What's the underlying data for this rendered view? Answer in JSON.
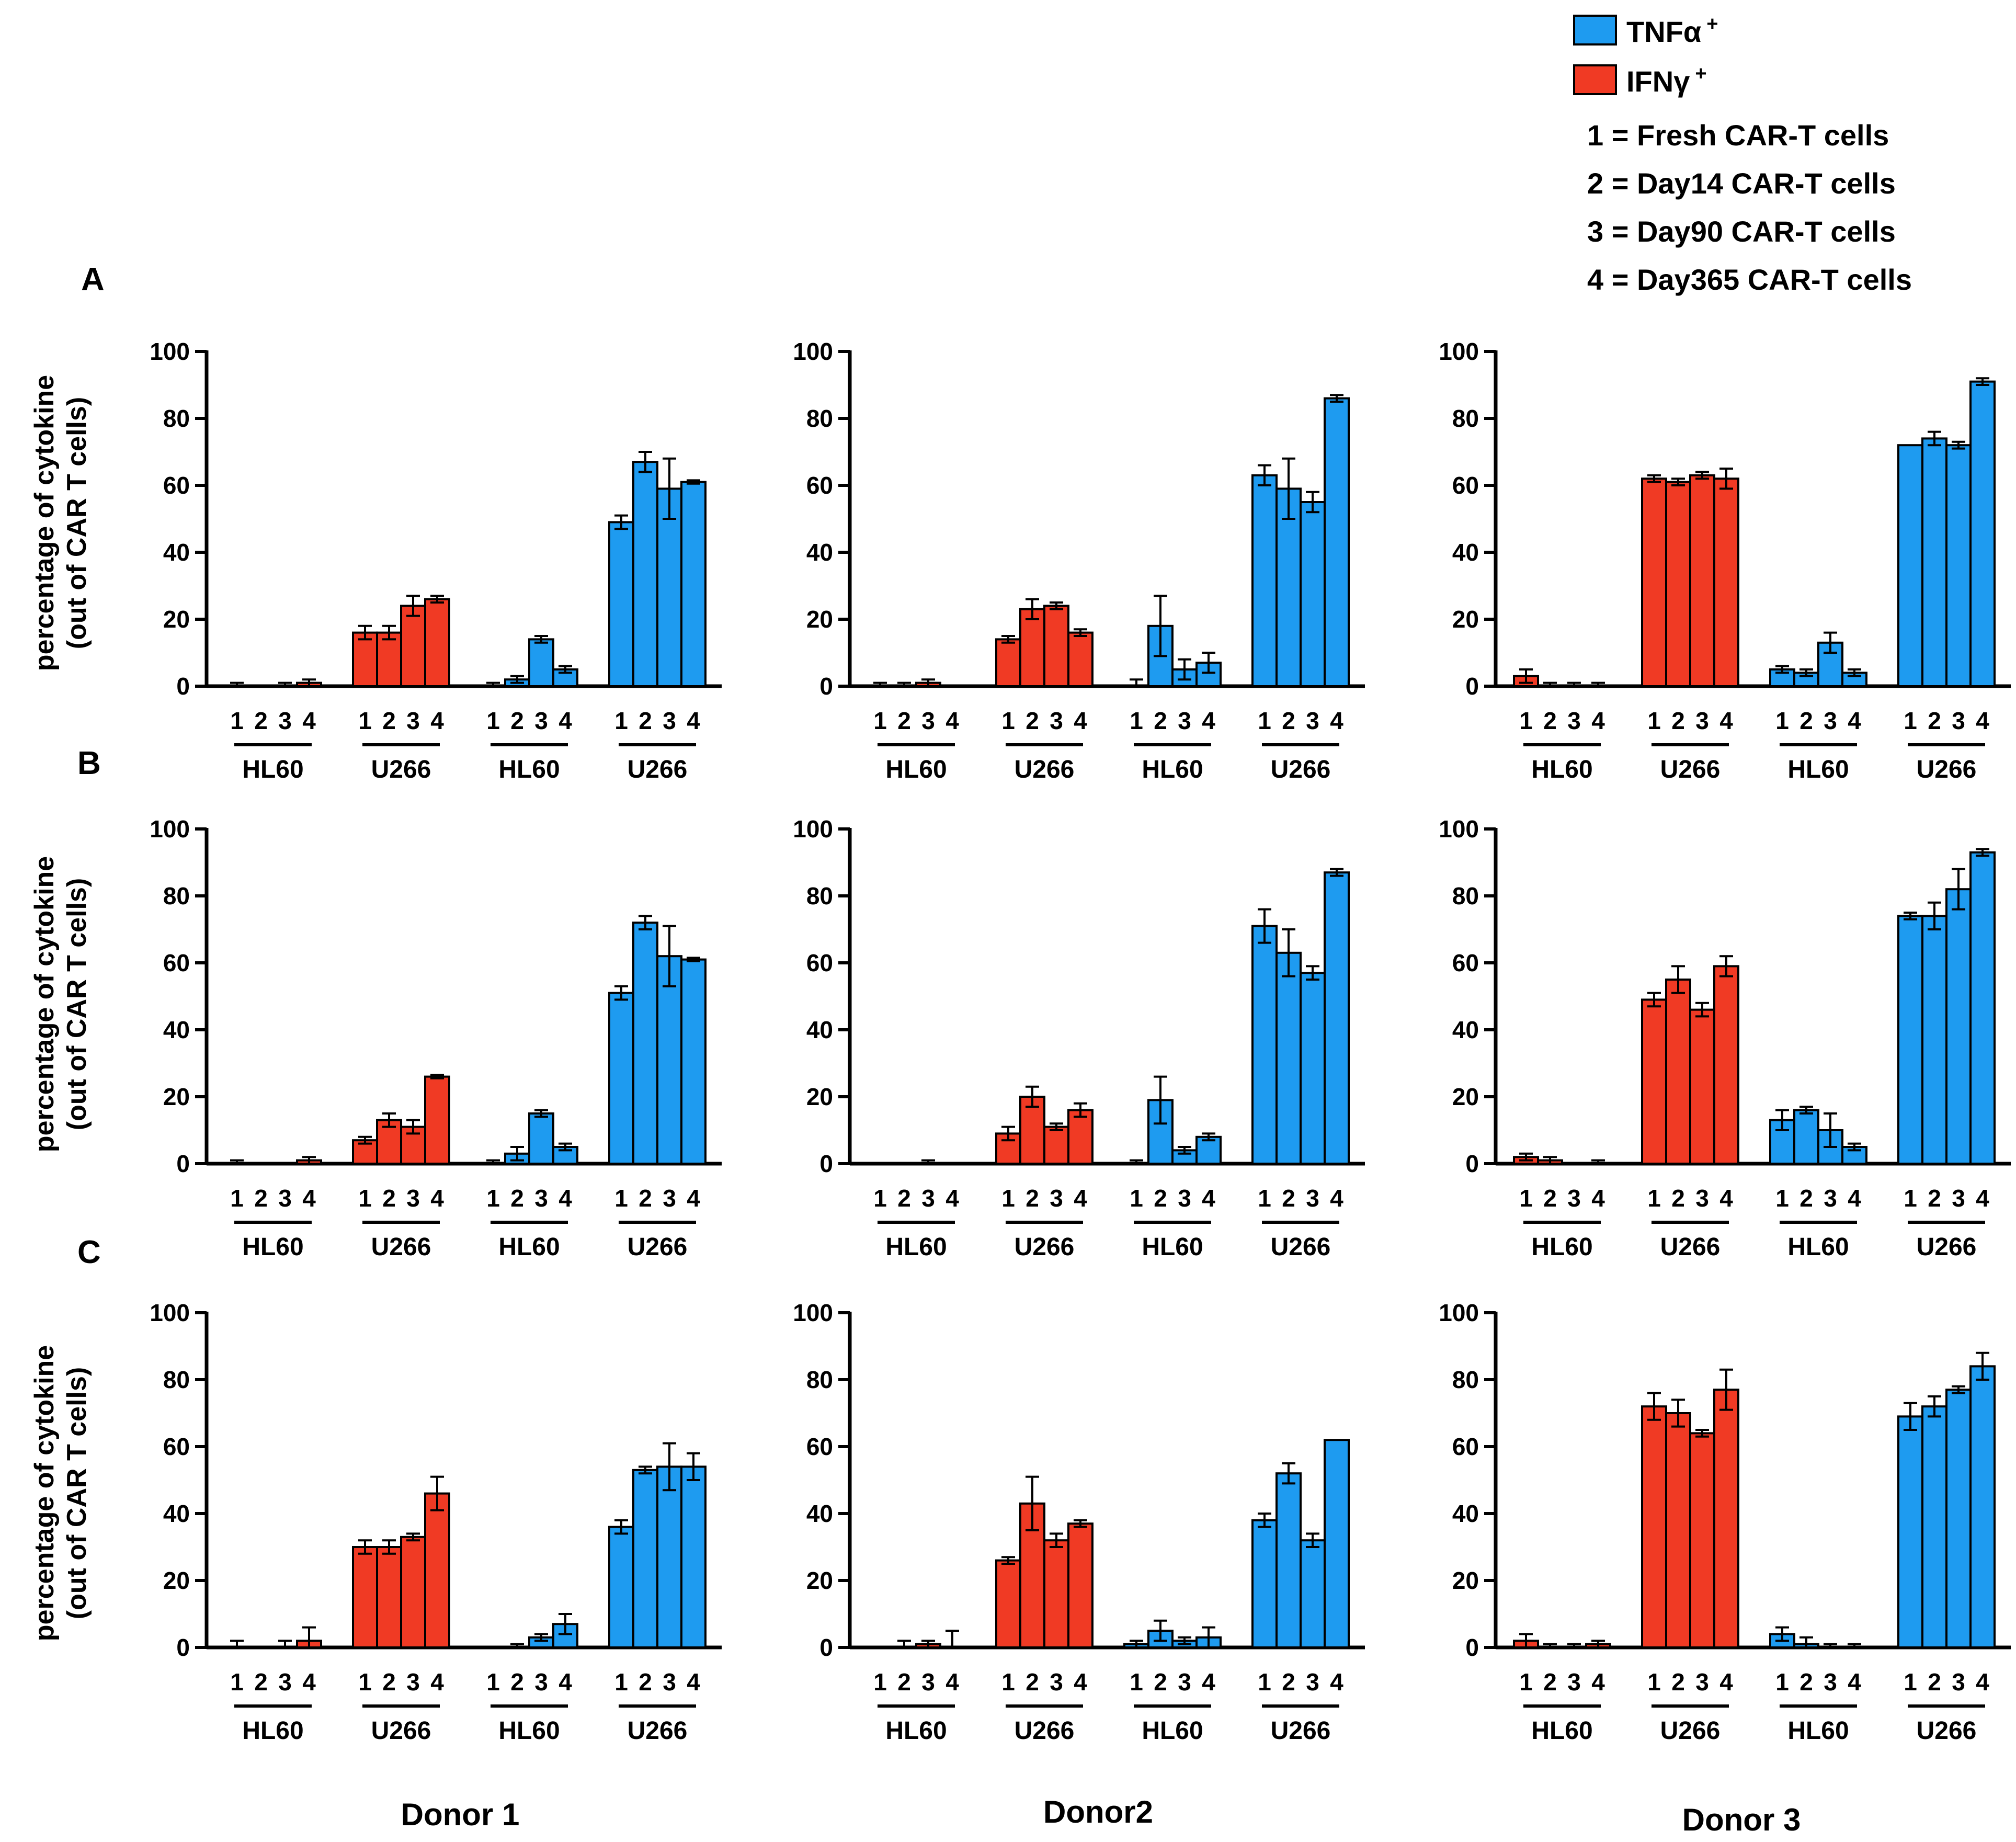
{
  "colors": {
    "tnf": "#1e9bf0",
    "ifn": "#f03a24"
  },
  "legend": {
    "tnf_label": "TNFα",
    "ifn_label": "IFNγ",
    "sup": "+",
    "notes": [
      "1 = Fresh  CAR-T cells",
      "2 = Day14 CAR-T cells",
      "3 = Day90 CAR-T cells",
      "4 = Day365  CAR-T cells"
    ]
  },
  "panel_letters": [
    "A",
    "B",
    "C"
  ],
  "ylabel": [
    "percentage of cytokine",
    "(out of CAR T cells)"
  ],
  "donors": [
    "Donor 1",
    "Donor2",
    "Donor 3"
  ],
  "chart_data": [
    {
      "type": "bar",
      "panel": "A",
      "donor": "Donor 1",
      "ylim": [
        0,
        100
      ],
      "yticks": [
        0,
        20,
        40,
        60,
        80,
        100
      ],
      "groups": [
        "HL60",
        "U266",
        "HL60",
        "U266"
      ],
      "group_series": [
        "IFNγ+",
        "IFNγ+",
        "TNFα+",
        "TNFα+"
      ],
      "categories": [
        "1",
        "2",
        "3",
        "4"
      ],
      "values": [
        [
          0,
          0,
          0,
          1
        ],
        [
          16,
          16,
          24,
          26
        ],
        [
          0,
          2,
          14,
          5
        ],
        [
          49,
          67,
          59,
          61
        ]
      ],
      "errors": [
        [
          1,
          0,
          1,
          1
        ],
        [
          2,
          2,
          3,
          1
        ],
        [
          1,
          1,
          1,
          1
        ],
        [
          2,
          3,
          9,
          0.5
        ]
      ]
    },
    {
      "type": "bar",
      "panel": "A",
      "donor": "Donor2",
      "ylim": [
        0,
        100
      ],
      "yticks": [
        0,
        20,
        40,
        60,
        80,
        100
      ],
      "groups": [
        "HL60",
        "U266",
        "HL60",
        "U266"
      ],
      "group_series": [
        "IFNγ+",
        "IFNγ+",
        "TNFα+",
        "TNFα+"
      ],
      "categories": [
        "1",
        "2",
        "3",
        "4"
      ],
      "values": [
        [
          0,
          0,
          1,
          0
        ],
        [
          14,
          23,
          24,
          16
        ],
        [
          0,
          18,
          5,
          7
        ],
        [
          63,
          59,
          55,
          86
        ]
      ],
      "errors": [
        [
          1,
          1,
          1,
          0
        ],
        [
          1,
          3,
          1,
          1
        ],
        [
          2,
          9,
          3,
          3
        ],
        [
          3,
          9,
          3,
          1
        ]
      ]
    },
    {
      "type": "bar",
      "panel": "A",
      "donor": "Donor 3",
      "ylim": [
        0,
        100
      ],
      "yticks": [
        0,
        20,
        40,
        60,
        80,
        100
      ],
      "groups": [
        "HL60",
        "U266",
        "HL60",
        "U266"
      ],
      "group_series": [
        "IFNγ+",
        "IFNγ+",
        "TNFα+",
        "TNFα+"
      ],
      "categories": [
        "1",
        "2",
        "3",
        "4"
      ],
      "values": [
        [
          3,
          0,
          0,
          0
        ],
        [
          62,
          61,
          63,
          62
        ],
        [
          5,
          4,
          13,
          4
        ],
        [
          72,
          74,
          72,
          91
        ]
      ],
      "errors": [
        [
          2,
          1,
          1,
          1
        ],
        [
          1,
          1,
          1,
          3
        ],
        [
          1,
          1,
          3,
          1
        ],
        [
          0,
          2,
          1,
          1
        ]
      ]
    },
    {
      "type": "bar",
      "panel": "B",
      "donor": "Donor 1",
      "ylim": [
        0,
        100
      ],
      "yticks": [
        0,
        20,
        40,
        60,
        80,
        100
      ],
      "groups": [
        "HL60",
        "U266",
        "HL60",
        "U266"
      ],
      "group_series": [
        "IFNγ+",
        "IFNγ+",
        "TNFα+",
        "TNFα+"
      ],
      "categories": [
        "1",
        "2",
        "3",
        "4"
      ],
      "values": [
        [
          0,
          0,
          0,
          1
        ],
        [
          7,
          13,
          11,
          26
        ],
        [
          0,
          3,
          15,
          5
        ],
        [
          51,
          72,
          62,
          61
        ]
      ],
      "errors": [
        [
          1,
          0,
          0,
          1
        ],
        [
          1,
          2,
          2,
          0.5
        ],
        [
          1,
          2,
          1,
          1
        ],
        [
          2,
          2,
          9,
          0.5
        ]
      ]
    },
    {
      "type": "bar",
      "panel": "B",
      "donor": "Donor2",
      "ylim": [
        0,
        100
      ],
      "yticks": [
        0,
        20,
        40,
        60,
        80,
        100
      ],
      "groups": [
        "HL60",
        "U266",
        "HL60",
        "U266"
      ],
      "group_series": [
        "IFNγ+",
        "IFNγ+",
        "TNFα+",
        "TNFα+"
      ],
      "categories": [
        "1",
        "2",
        "3",
        "4"
      ],
      "values": [
        [
          0,
          0,
          0,
          0
        ],
        [
          9,
          20,
          11,
          16
        ],
        [
          0,
          19,
          4,
          8
        ],
        [
          71,
          63,
          57,
          87
        ]
      ],
      "errors": [
        [
          0,
          0,
          1,
          0
        ],
        [
          2,
          3,
          1,
          2
        ],
        [
          1,
          7,
          1,
          1
        ],
        [
          5,
          7,
          2,
          1
        ]
      ]
    },
    {
      "type": "bar",
      "panel": "B",
      "donor": "Donor 3",
      "ylim": [
        0,
        100
      ],
      "yticks": [
        0,
        20,
        40,
        60,
        80,
        100
      ],
      "groups": [
        "HL60",
        "U266",
        "HL60",
        "U266"
      ],
      "group_series": [
        "IFNγ+",
        "IFNγ+",
        "TNFα+",
        "TNFα+"
      ],
      "categories": [
        "1",
        "2",
        "3",
        "4"
      ],
      "values": [
        [
          2,
          1,
          0,
          0
        ],
        [
          49,
          55,
          46,
          59
        ],
        [
          13,
          16,
          10,
          5
        ],
        [
          74,
          74,
          82,
          93
        ]
      ],
      "errors": [
        [
          1,
          1,
          0,
          1
        ],
        [
          2,
          4,
          2,
          3
        ],
        [
          3,
          1,
          5,
          1
        ],
        [
          1,
          4,
          6,
          1
        ]
      ]
    },
    {
      "type": "bar",
      "panel": "C",
      "donor": "Donor 1",
      "ylim": [
        0,
        100
      ],
      "yticks": [
        0,
        20,
        40,
        60,
        80,
        100
      ],
      "groups": [
        "HL60",
        "U266",
        "HL60",
        "U266"
      ],
      "group_series": [
        "IFNγ+",
        "IFNγ+",
        "TNFα+",
        "TNFα+"
      ],
      "categories": [
        "1",
        "2",
        "3",
        "4"
      ],
      "values": [
        [
          0,
          0,
          0,
          2
        ],
        [
          30,
          30,
          33,
          46
        ],
        [
          0,
          0,
          3,
          7
        ],
        [
          36,
          53,
          54,
          54
        ]
      ],
      "errors": [
        [
          2,
          0,
          2,
          4
        ],
        [
          2,
          2,
          1,
          5
        ],
        [
          0,
          1,
          1,
          3
        ],
        [
          2,
          1,
          7,
          4
        ]
      ]
    },
    {
      "type": "bar",
      "panel": "C",
      "donor": "Donor2",
      "ylim": [
        0,
        100
      ],
      "yticks": [
        0,
        20,
        40,
        60,
        80,
        100
      ],
      "groups": [
        "HL60",
        "U266",
        "HL60",
        "U266"
      ],
      "group_series": [
        "IFNγ+",
        "IFNγ+",
        "TNFα+",
        "TNFα+"
      ],
      "categories": [
        "1",
        "2",
        "3",
        "4"
      ],
      "values": [
        [
          0,
          0,
          1,
          0
        ],
        [
          26,
          43,
          32,
          37
        ],
        [
          1,
          5,
          2,
          3
        ],
        [
          38,
          52,
          32,
          62
        ]
      ],
      "errors": [
        [
          0,
          2,
          1,
          5
        ],
        [
          1,
          8,
          2,
          1
        ],
        [
          1,
          3,
          1,
          3
        ],
        [
          2,
          3,
          2,
          0
        ]
      ]
    },
    {
      "type": "bar",
      "panel": "C",
      "donor": "Donor 3",
      "ylim": [
        0,
        100
      ],
      "yticks": [
        0,
        20,
        40,
        60,
        80,
        100
      ],
      "groups": [
        "HL60",
        "U266",
        "HL60",
        "U266"
      ],
      "group_series": [
        "IFNγ+",
        "IFNγ+",
        "TNFα+",
        "TNFα+"
      ],
      "categories": [
        "1",
        "2",
        "3",
        "4"
      ],
      "values": [
        [
          2,
          0,
          0,
          1
        ],
        [
          72,
          70,
          64,
          77
        ],
        [
          4,
          1,
          0,
          0
        ],
        [
          69,
          72,
          77,
          84
        ]
      ],
      "errors": [
        [
          2,
          1,
          1,
          1
        ],
        [
          4,
          4,
          1,
          6
        ],
        [
          2,
          2,
          1,
          1
        ],
        [
          4,
          3,
          1,
          4
        ]
      ]
    }
  ]
}
